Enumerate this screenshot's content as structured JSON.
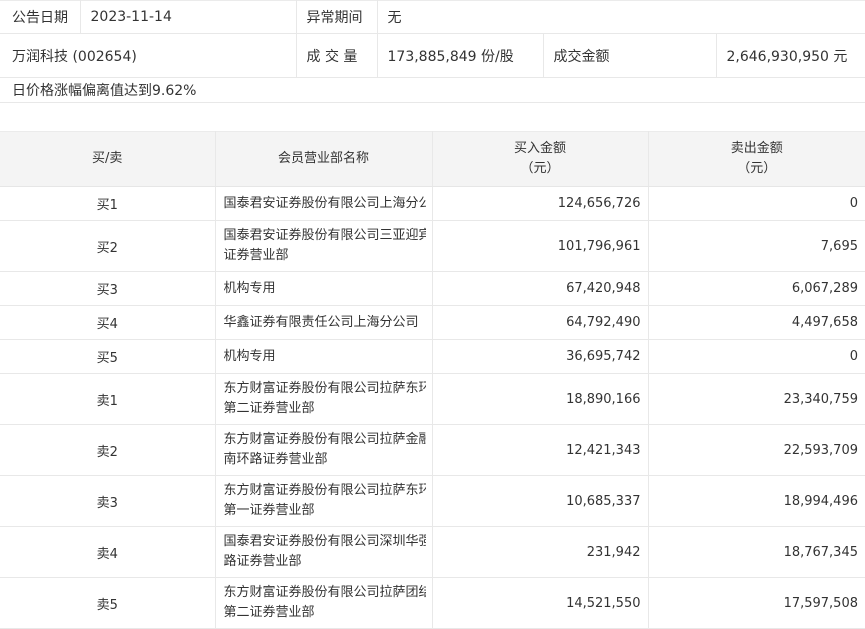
{
  "info": {
    "announce_date_label": "公告日期",
    "announce_date": "2023-11-14",
    "abnormal_period_label": "异常期间",
    "abnormal_period": "无",
    "stock_name": "万润科技 (002654)",
    "volume_label": "成 交 量",
    "volume_value": "173,885,849 份/股",
    "turnover_label": "成交金额",
    "turnover_value": "2,646,930,950 元",
    "reason": "日价格涨幅偏离值达到9.62%"
  },
  "table": {
    "headers": {
      "side": "买/卖",
      "broker": "会员营业部名称",
      "buy": "买入金额\n（元）",
      "sell": "卖出金额\n（元）"
    },
    "rows": [
      {
        "side": "买1",
        "broker": "国泰君安证券股份有限公司上海分公司",
        "buy": "124,656,726",
        "sell": "0"
      },
      {
        "side": "买2",
        "broker": "国泰君安证券股份有限公司三亚迎宾路\n证券营业部",
        "buy": "101,796,961",
        "sell": "7,695"
      },
      {
        "side": "买3",
        "broker": "机构专用",
        "buy": "67,420,948",
        "sell": "6,067,289"
      },
      {
        "side": "买4",
        "broker": "华鑫证券有限责任公司上海分公司",
        "buy": "64,792,490",
        "sell": "4,497,658"
      },
      {
        "side": "买5",
        "broker": "机构专用",
        "buy": "36,695,742",
        "sell": "0"
      },
      {
        "side": "卖1",
        "broker": "东方财富证券股份有限公司拉萨东环路\n第二证券营业部",
        "buy": "18,890,166",
        "sell": "23,340,759"
      },
      {
        "side": "卖2",
        "broker": "东方财富证券股份有限公司拉萨金融城\n南环路证券营业部",
        "buy": "12,421,343",
        "sell": "22,593,709"
      },
      {
        "side": "卖3",
        "broker": "东方财富证券股份有限公司拉萨东环路\n第一证券营业部",
        "buy": "10,685,337",
        "sell": "18,994,496"
      },
      {
        "side": "卖4",
        "broker": "国泰君安证券股份有限公司深圳华强北\n路证券营业部",
        "buy": "231,942",
        "sell": "18,767,345"
      },
      {
        "side": "卖5",
        "broker": "东方财富证券股份有限公司拉萨团结路\n第二证券营业部",
        "buy": "14,521,550",
        "sell": "17,597,508"
      }
    ]
  },
  "colors": {
    "header_bg": "#f4f4f4",
    "border": "#e8e8e8",
    "text": "#333333"
  }
}
